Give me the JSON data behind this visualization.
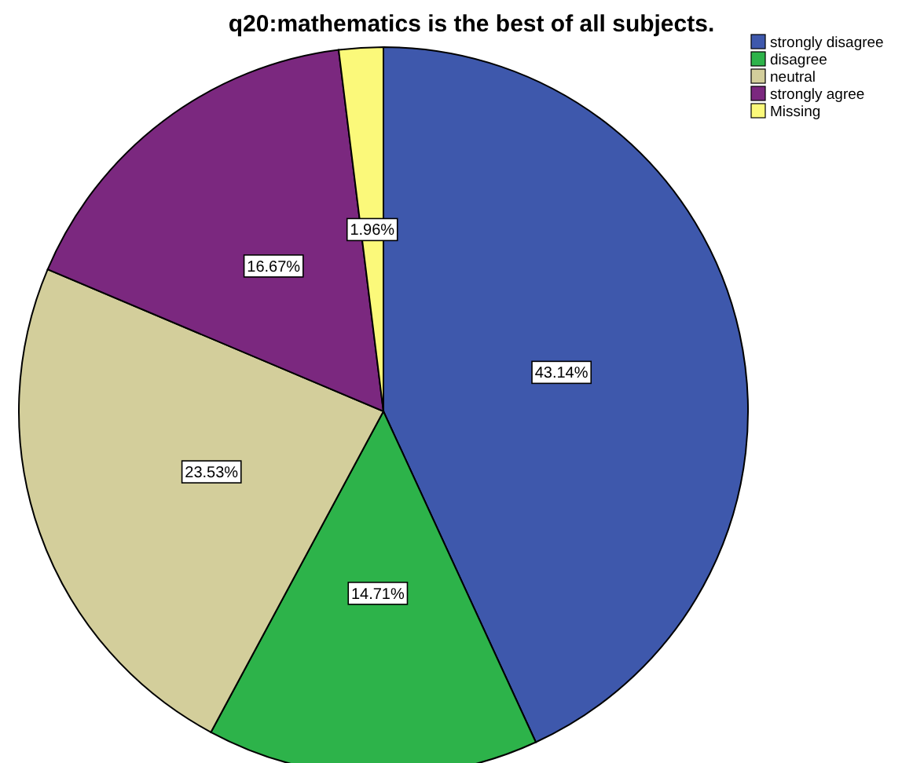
{
  "chart_data": {
    "type": "pie",
    "title": "q20:mathematics is the best of all subjects.",
    "categories": [
      "strongly disagree",
      "disagree",
      "neutral",
      "strongly agree",
      "Missing"
    ],
    "values": [
      43.14,
      14.71,
      23.53,
      16.67,
      1.96
    ],
    "colors": [
      "#3e58ac",
      "#2db34a",
      "#d3ce9b",
      "#7b287f",
      "#fbf97a"
    ],
    "value_labels": [
      "43.14%",
      "14.71%",
      "23.53%",
      "16.67%",
      "1.96%"
    ],
    "legend": "top right"
  }
}
